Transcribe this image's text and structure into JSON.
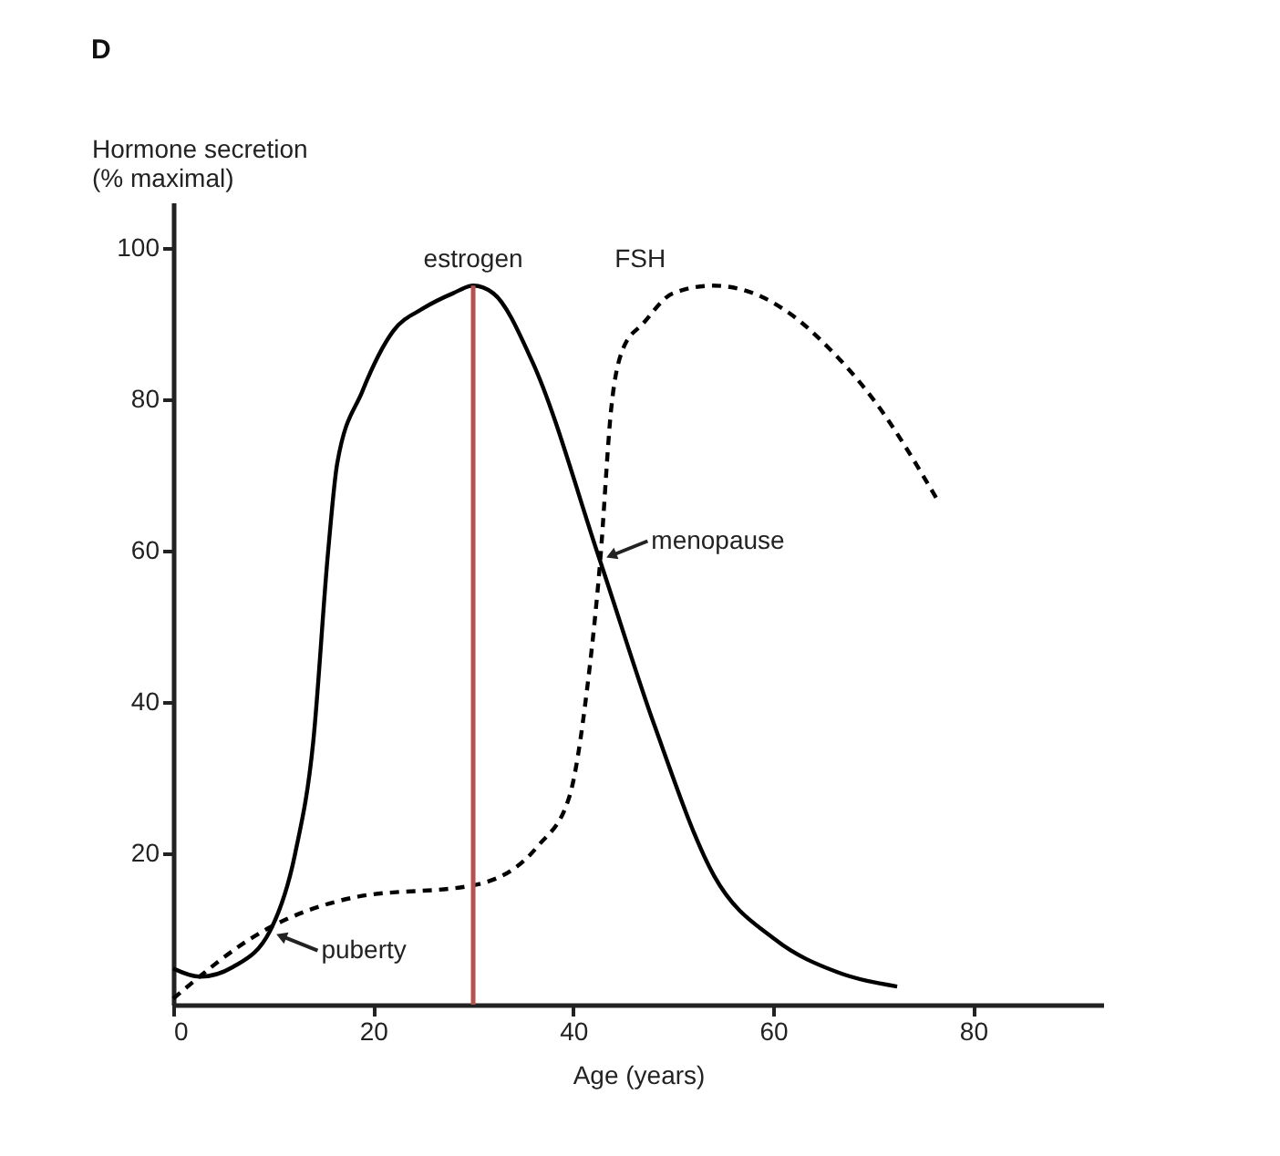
{
  "chart_data": {
    "type": "line",
    "title": "D",
    "xlabel": "Age (years)",
    "ylabel": "Hormone secretion\n(% maximal)",
    "xlim": [
      0,
      93
    ],
    "ylim": [
      0,
      106
    ],
    "xticks": [
      0,
      20,
      40,
      60,
      80
    ],
    "yticks": [
      20,
      40,
      60,
      80,
      100
    ],
    "grid": false,
    "marker": "none",
    "series": [
      {
        "name": "estrogen",
        "color": "#000000",
        "line_style": "solid",
        "x": [
          0,
          2.7,
          6,
          9.7,
          12.2,
          14,
          15.5,
          16.4,
          18.9,
          22,
          25,
          28,
          30,
          32,
          35.9,
          42.7,
          48.1,
          54.1,
          60.2,
          66.4,
          72.4
        ],
        "values": [
          4.8,
          3.7,
          5,
          9.8,
          20,
          34.7,
          60,
          71.5,
          81,
          89,
          92,
          94,
          95,
          94,
          85,
          58.6,
          37,
          17,
          8.6,
          4.3,
          2.4
        ]
      },
      {
        "name": "FSH",
        "color": "#000000",
        "line_style": "dashed",
        "x": [
          0,
          9.1,
          18.2,
          30.1,
          36.5,
          39.6,
          41.4,
          42.7,
          43.8,
          45,
          47,
          50,
          54,
          58,
          62,
          65.6,
          70,
          76.6
        ],
        "values": [
          0.8,
          9.8,
          14.2,
          15.8,
          21,
          27.4,
          41.8,
          58.6,
          78.7,
          86.7,
          90,
          94,
          95,
          94,
          91,
          86.7,
          80,
          66.3
        ]
      }
    ],
    "ref_lines": [
      {
        "axis": "x",
        "value": 30,
        "color": "#b5524f"
      }
    ],
    "annotations": [
      {
        "text": "menopause",
        "x": 42.7,
        "y": 58.6
      },
      {
        "text": "puberty",
        "x": 9.7,
        "y": 9.8
      }
    ]
  }
}
